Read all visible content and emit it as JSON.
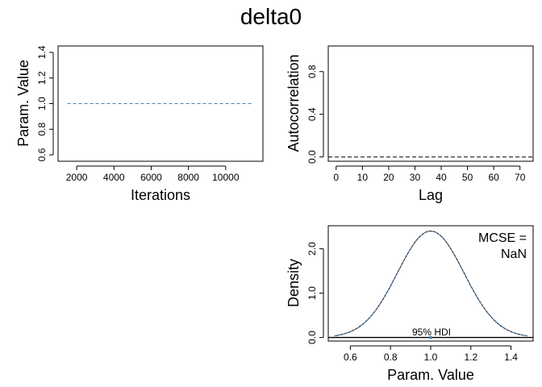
{
  "title": "delta0",
  "chart_data": [
    {
      "type": "line",
      "panel": "trace",
      "xlabel": "Iterations",
      "ylabel": "Param. Value",
      "xlim": [
        1000,
        12000
      ],
      "ylim": [
        0.55,
        1.45
      ],
      "xticks": [
        2000,
        4000,
        6000,
        8000,
        10000
      ],
      "yticks": [
        0.6,
        0.8,
        1.0,
        1.2,
        1.4
      ],
      "xtick_labels": [
        "2000",
        "4000",
        "6000",
        "8000",
        "10000"
      ],
      "ytick_labels": [
        "0.6",
        "0.8",
        "1.0",
        "1.2",
        "1.4"
      ],
      "series": [
        {
          "x": [
            1500,
            11500
          ],
          "values": [
            1.0,
            1.0
          ],
          "color": "#4a7fb5",
          "style": "dashed"
        }
      ]
    },
    {
      "type": "line",
      "panel": "autocorrelation",
      "xlabel": "Lag",
      "ylabel": "Autocorrelation",
      "xlim": [
        -3,
        75
      ],
      "ylim": [
        -0.04,
        1.04
      ],
      "xticks": [
        0,
        10,
        20,
        30,
        40,
        50,
        60,
        70
      ],
      "yticks": [
        0.0,
        0.4,
        0.8
      ],
      "xtick_labels": [
        "0",
        "10",
        "20",
        "30",
        "40",
        "50",
        "60",
        "70"
      ],
      "ytick_labels": [
        "0.0",
        "0.4",
        "0.8"
      ],
      "reference_line": 0.0
    },
    {
      "type": "line",
      "panel": "density",
      "xlabel": "Param. Value",
      "ylabel": "Density",
      "xlim": [
        0.49,
        1.51
      ],
      "ylim": [
        -0.08,
        2.52
      ],
      "xticks": [
        0.6,
        0.8,
        1.0,
        1.2,
        1.4
      ],
      "yticks": [
        0.0,
        1.0,
        2.0
      ],
      "xtick_labels": [
        "0.6",
        "0.8",
        "1.0",
        "1.2",
        "1.4"
      ],
      "ytick_labels": [
        "0.0",
        "1.0",
        "2.0"
      ],
      "density_peak": {
        "x": 1.0,
        "y": 2.4
      },
      "density_range": [
        0.52,
        1.48
      ],
      "density_sd": 0.166,
      "hdi_label": "95% HDI",
      "annotation": [
        "MCSE =",
        "NaN"
      ]
    }
  ],
  "colors": {
    "series": "#4a7fb5",
    "black": "#000000"
  }
}
